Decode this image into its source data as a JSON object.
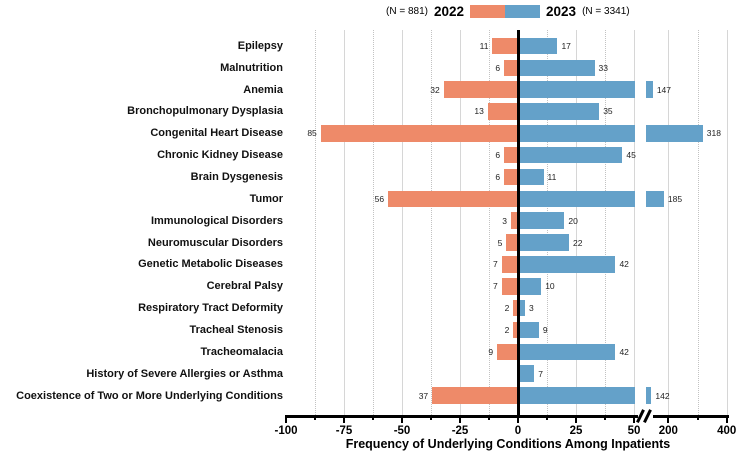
{
  "chart_data": {
    "type": "bar",
    "variant": "diverging-horizontal-bar-with-right-axis-break",
    "title": "",
    "xlabel": "Frequency of Underlying Conditions Among Inpatients",
    "categories": [
      "Epilepsy",
      "Malnutrition",
      "Anemia",
      "Bronchopulmonary Dysplasia",
      "Congenital Heart Disease",
      "Chronic Kidney Disease",
      "Brain Dysgenesis",
      "Tumor",
      "Immunological Disorders",
      "Neuromuscular Disorders",
      "Genetic Metabolic Diseases",
      "Cerebral Palsy",
      "Respiratory Tract Deformity",
      "Tracheal Stenosis",
      "Tracheomalacia",
      "History of Severe Allergies or Asthma",
      "Coexistence of Two or More Underlying Conditions"
    ],
    "series": [
      {
        "name": "2022",
        "n_label": "(N = 881)",
        "side": "left",
        "color": "#EE8A69",
        "values": [
          11,
          6,
          32,
          13,
          85,
          6,
          6,
          56,
          3,
          5,
          7,
          7,
          2,
          2,
          9,
          null,
          37
        ]
      },
      {
        "name": "2023",
        "n_label": "(N = 3341)",
        "side": "right",
        "color": "#64A1C9",
        "values": [
          17,
          33,
          147,
          35,
          318,
          45,
          11,
          185,
          20,
          22,
          42,
          10,
          3,
          9,
          42,
          7,
          142
        ]
      }
    ],
    "x_axis": {
      "major_ticks": [
        -100,
        -75,
        -50,
        -25,
        0,
        25,
        50,
        200,
        400
      ],
      "major_tick_labels": [
        "-100",
        "-75",
        "-50",
        "-25",
        "0",
        "25",
        "50",
        "200",
        "400"
      ],
      "minor_ticks": [
        -87.5,
        -62.5,
        -37.5,
        -12.5,
        12.5,
        37.5,
        300
      ],
      "axis_break_between": [
        50,
        200
      ],
      "label": "Frequency of Underlying Conditions Among Inpatients"
    },
    "legend_position": "top-center",
    "grid": true
  },
  "colors": {
    "bar_2022": "#EE8A69",
    "bar_2023": "#64A1C9",
    "axis": "#000000",
    "gridline": "#c2c2c2"
  }
}
